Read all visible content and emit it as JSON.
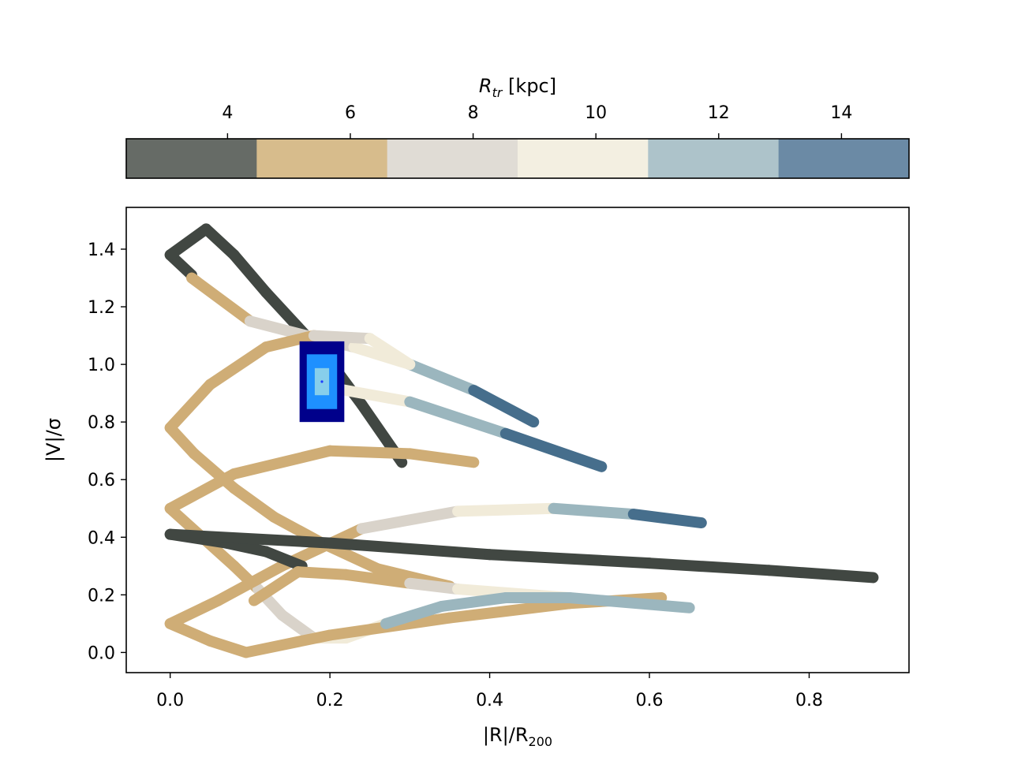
{
  "chart_data": {
    "type": "line",
    "xlabel_main": "|R|/R",
    "xlabel_sub": "200",
    "ylabel": "|V|/σ",
    "colorbar_label_main": "R",
    "colorbar_label_sub": "tr",
    "colorbar_label_unit": " [kpc]",
    "colorbar_ticks": [
      "4",
      "6",
      "8",
      "10",
      "12",
      "14"
    ],
    "colorbar_tick_values": [
      4,
      6,
      8,
      10,
      12,
      14
    ],
    "colorbar_range": [
      2.35,
      15.1
    ],
    "colorbar_bins": [
      {
        "from": 2.35,
        "to": 4.475,
        "color": "#666b66"
      },
      {
        "from": 4.475,
        "to": 6.6,
        "color": "#d7bc8c"
      },
      {
        "from": 6.6,
        "to": 8.725,
        "color": "#e0dcd5"
      },
      {
        "from": 8.725,
        "to": 10.85,
        "color": "#f3efe1"
      },
      {
        "from": 10.85,
        "to": 12.975,
        "color": "#adc3ca"
      },
      {
        "from": 12.975,
        "to": 15.1,
        "color": "#6b8aa5"
      }
    ],
    "xlim": [
      -0.055,
      0.925
    ],
    "ylim": [
      -0.07,
      1.545
    ],
    "xticks": [
      "0.0",
      "0.2",
      "0.4",
      "0.6",
      "0.8"
    ],
    "xtick_values": [
      0.0,
      0.2,
      0.4,
      0.6,
      0.8
    ],
    "yticks": [
      "0.0",
      "0.2",
      "0.4",
      "0.6",
      "0.8",
      "1.0",
      "1.2",
      "1.4"
    ],
    "ytick_values": [
      0.0,
      0.2,
      0.4,
      0.6,
      0.8,
      1.0,
      1.2,
      1.4
    ],
    "track_colors": [
      "#414742",
      "#cfad76",
      "#d9d3ca",
      "#f1ebd9",
      "#9bb6be",
      "#466e8c"
    ],
    "tracks": [
      {
        "points": [
          [
            0.027,
            1.31
          ],
          [
            0.0,
            1.38
          ],
          [
            0.045,
            1.47
          ],
          [
            0.08,
            1.38
          ],
          [
            0.12,
            1.25
          ],
          [
            0.16,
            1.13
          ],
          [
            0.2,
            1.01
          ],
          [
            0.24,
            0.86
          ],
          [
            0.29,
            0.66
          ]
        ],
        "colors": [
          0,
          0,
          0,
          0,
          0,
          0,
          0,
          0
        ]
      },
      {
        "points": [
          [
            0.027,
            1.3
          ],
          [
            0.1,
            1.15
          ],
          [
            0.17,
            1.1
          ],
          [
            0.23,
            1.06
          ],
          [
            0.3,
            1.0
          ],
          [
            0.38,
            0.91
          ],
          [
            0.455,
            0.8
          ]
        ],
        "colors": [
          1,
          2,
          2,
          3,
          4,
          5
        ]
      },
      {
        "points": [
          [
            0.2,
            0.92
          ],
          [
            0.3,
            0.87
          ],
          [
            0.42,
            0.76
          ],
          [
            0.54,
            0.645
          ]
        ],
        "colors": [
          3,
          4,
          5
        ]
      },
      {
        "points": [
          [
            0.0,
            0.78
          ],
          [
            0.05,
            0.93
          ],
          [
            0.12,
            1.06
          ],
          [
            0.18,
            1.1
          ],
          [
            0.25,
            1.09
          ],
          [
            0.3,
            1.0
          ]
        ],
        "colors": [
          1,
          1,
          1,
          2,
          3
        ]
      },
      {
        "points": [
          [
            0.0,
            0.78
          ],
          [
            0.03,
            0.69
          ],
          [
            0.08,
            0.57
          ],
          [
            0.13,
            0.47
          ],
          [
            0.19,
            0.38
          ],
          [
            0.26,
            0.29
          ],
          [
            0.35,
            0.23
          ]
        ],
        "colors": [
          1,
          1,
          1,
          1,
          1,
          1
        ]
      },
      {
        "points": [
          [
            0.0,
            0.5
          ],
          [
            0.08,
            0.62
          ],
          [
            0.2,
            0.7
          ],
          [
            0.3,
            0.69
          ],
          [
            0.38,
            0.66
          ]
        ],
        "colors": [
          1,
          1,
          1,
          1
        ]
      },
      {
        "points": [
          [
            0.0,
            0.5
          ],
          [
            0.04,
            0.4
          ],
          [
            0.08,
            0.3
          ],
          [
            0.11,
            0.22
          ],
          [
            0.14,
            0.13
          ],
          [
            0.18,
            0.05
          ],
          [
            0.22,
            0.05
          ],
          [
            0.27,
            0.1
          ]
        ],
        "colors": [
          1,
          1,
          1,
          2,
          2,
          3,
          3
        ]
      },
      {
        "points": [
          [
            0.0,
            0.1
          ],
          [
            0.06,
            0.18
          ],
          [
            0.14,
            0.3
          ],
          [
            0.24,
            0.43
          ],
          [
            0.36,
            0.49
          ],
          [
            0.48,
            0.5
          ],
          [
            0.58,
            0.48
          ],
          [
            0.665,
            0.45
          ]
        ],
        "colors": [
          1,
          1,
          1,
          2,
          3,
          4,
          5
        ]
      },
      {
        "points": [
          [
            0.0,
            0.1
          ],
          [
            0.05,
            0.04
          ],
          [
            0.095,
            0.0
          ],
          [
            0.2,
            0.06
          ],
          [
            0.35,
            0.12
          ],
          [
            0.5,
            0.17
          ],
          [
            0.615,
            0.19
          ]
        ],
        "colors": [
          1,
          1,
          1,
          1,
          1,
          1
        ]
      },
      {
        "points": [
          [
            0.0,
            0.41
          ],
          [
            0.07,
            0.38
          ],
          [
            0.12,
            0.35
          ],
          [
            0.165,
            0.3
          ]
        ],
        "colors": [
          0,
          0,
          0
        ]
      },
      {
        "points": [
          [
            0.0,
            0.41
          ],
          [
            0.2,
            0.38
          ],
          [
            0.4,
            0.34
          ],
          [
            0.6,
            0.31
          ],
          [
            0.75,
            0.285
          ],
          [
            0.88,
            0.26
          ]
        ],
        "colors": [
          0,
          0,
          0,
          0,
          0
        ]
      },
      {
        "points": [
          [
            0.105,
            0.18
          ],
          [
            0.16,
            0.28
          ],
          [
            0.22,
            0.27
          ],
          [
            0.3,
            0.24
          ],
          [
            0.36,
            0.22
          ],
          [
            0.5,
            0.19
          ],
          [
            0.65,
            0.155
          ]
        ],
        "colors": [
          1,
          1,
          1,
          2,
          3,
          4
        ]
      },
      {
        "points": [
          [
            0.27,
            0.1
          ],
          [
            0.34,
            0.16
          ],
          [
            0.42,
            0.19
          ],
          [
            0.5,
            0.19
          ]
        ],
        "colors": [
          4,
          4,
          4
        ]
      }
    ],
    "marker": {
      "x": 0.19,
      "y": 0.94,
      "levels": [
        {
          "dx": 0.028,
          "dy": 0.14,
          "color": "#00008b"
        },
        {
          "dx": 0.019,
          "dy": 0.095,
          "color": "#1e90ff"
        },
        {
          "dx": 0.009,
          "dy": 0.047,
          "color": "#87ceeb"
        }
      ]
    }
  }
}
